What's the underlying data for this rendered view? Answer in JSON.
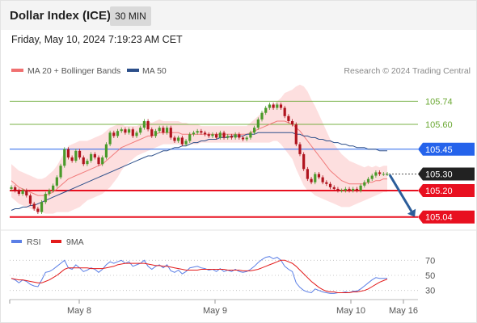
{
  "header": {
    "title": "Dollar Index (ICE)",
    "timeframe": "30 MIN",
    "datetime": "Friday, May 10, 2024 7:19:23 AM CET"
  },
  "legend": {
    "ma20_label": "MA 20 + Bollinger Bands",
    "ma50_label": "MA 50",
    "credit": "Research © 2024 Trading Central",
    "rsi_label": "RSI",
    "rsi_ma_label": "9MA"
  },
  "colors": {
    "ma20": "#f07070",
    "ma50": "#2c4f8a",
    "band_fill": "#fcd4d4",
    "up_candle": "#4a9a2a",
    "down_candle": "#b0141e",
    "green_level": "#6aa832",
    "blue_level": "#2563eb",
    "red_level": "#e81020",
    "arrow": "#2b5d9a",
    "rsi": "#5b7fe6",
    "rsi_ma": "#e31b1b",
    "current_tag": "#222222"
  },
  "chart_data": {
    "type": "candlestick",
    "instrument": "Dollar Index (ICE)",
    "interval": "30 MIN",
    "ylim": [
      104.98,
      105.82
    ],
    "x_ticks": [
      "May 8",
      "May 9",
      "May 10",
      "May 16"
    ],
    "levels": [
      {
        "value": 105.74,
        "label": "105.74",
        "kind": "resistance",
        "style": "green"
      },
      {
        "value": 105.6,
        "label": "105.60",
        "kind": "resistance",
        "style": "green"
      },
      {
        "value": 105.45,
        "label": "105.45",
        "kind": "pivot",
        "style": "blue"
      },
      {
        "value": 105.3,
        "label": "105.30",
        "kind": "current",
        "style": "dark"
      },
      {
        "value": 105.2,
        "label": "105.20",
        "kind": "support",
        "style": "red"
      },
      {
        "value": 105.04,
        "label": "105.04",
        "kind": "support",
        "style": "red"
      }
    ],
    "projection": {
      "from": 105.3,
      "to": 105.04,
      "direction": "down"
    },
    "closes": [
      105.22,
      105.2,
      105.18,
      105.2,
      105.17,
      105.12,
      105.09,
      105.07,
      105.13,
      105.18,
      105.2,
      105.23,
      105.28,
      105.35,
      105.45,
      105.4,
      105.38,
      105.44,
      105.4,
      105.36,
      105.38,
      105.42,
      105.4,
      105.36,
      105.4,
      105.48,
      105.55,
      105.53,
      105.56,
      105.57,
      105.55,
      105.57,
      105.53,
      105.55,
      105.58,
      105.62,
      105.57,
      105.53,
      105.56,
      105.58,
      105.55,
      105.58,
      105.52,
      105.5,
      105.52,
      105.48,
      105.5,
      105.54,
      105.55,
      105.56,
      105.55,
      105.54,
      105.53,
      105.54,
      105.52,
      105.55,
      105.52,
      105.53,
      105.52,
      105.54,
      105.52,
      105.51,
      105.52,
      105.55,
      105.58,
      105.63,
      105.67,
      105.7,
      105.72,
      105.7,
      105.72,
      105.7,
      105.65,
      105.62,
      105.6,
      105.48,
      105.42,
      105.33,
      105.27,
      105.25,
      105.3,
      105.28,
      105.25,
      105.24,
      105.22,
      105.21,
      105.2,
      105.2,
      105.21,
      105.2,
      105.21,
      105.2,
      105.23,
      105.25,
      105.27,
      105.29,
      105.31,
      105.3,
      105.3,
      105.3
    ],
    "ma20": [
      105.26,
      105.24,
      105.22,
      105.21,
      105.2,
      105.19,
      105.18,
      105.17,
      105.17,
      105.17,
      105.18,
      105.19,
      105.21,
      105.23,
      105.25,
      105.27,
      105.28,
      105.29,
      105.3,
      105.31,
      105.32,
      105.33,
      105.34,
      105.35,
      105.36,
      105.38,
      105.4,
      105.42,
      105.44,
      105.46,
      105.47,
      105.48,
      105.49,
      105.5,
      105.51,
      105.52,
      105.53,
      105.53,
      105.54,
      105.55,
      105.55,
      105.55,
      105.55,
      105.55,
      105.55,
      105.54,
      105.54,
      105.54,
      105.54,
      105.54,
      105.54,
      105.54,
      105.54,
      105.54,
      105.54,
      105.54,
      105.54,
      105.54,
      105.54,
      105.54,
      105.54,
      105.54,
      105.54,
      105.55,
      105.56,
      105.57,
      105.58,
      105.59,
      105.6,
      105.61,
      105.62,
      105.62,
      105.62,
      105.61,
      105.6,
      105.58,
      105.56,
      105.53,
      105.5,
      105.47,
      105.44,
      105.41,
      105.38,
      105.35,
      105.32,
      105.3,
      105.28,
      105.26,
      105.25,
      105.24,
      105.24,
      105.24,
      105.24,
      105.24,
      105.25,
      105.25,
      105.26,
      105.26,
      105.27,
      105.27
    ],
    "ma50": [
      105.08,
      105.09,
      105.09,
      105.1,
      105.1,
      105.11,
      105.11,
      105.12,
      105.13,
      105.14,
      105.15,
      105.16,
      105.17,
      105.18,
      105.19,
      105.2,
      105.21,
      105.22,
      105.23,
      105.24,
      105.25,
      105.26,
      105.27,
      105.28,
      105.29,
      105.3,
      105.31,
      105.32,
      105.33,
      105.34,
      105.35,
      105.36,
      105.37,
      105.38,
      105.39,
      105.4,
      105.41,
      105.41,
      105.42,
      105.43,
      105.44,
      105.44,
      105.45,
      105.46,
      105.46,
      105.47,
      105.47,
      105.48,
      105.49,
      105.49,
      105.5,
      105.5,
      105.51,
      105.51,
      105.51,
      105.52,
      105.52,
      105.52,
      105.53,
      105.53,
      105.53,
      105.53,
      105.54,
      105.54,
      105.54,
      105.55,
      105.55,
      105.55,
      105.55,
      105.55,
      105.55,
      105.55,
      105.55,
      105.55,
      105.55,
      105.54,
      105.54,
      105.53,
      105.53,
      105.52,
      105.52,
      105.51,
      105.51,
      105.5,
      105.5,
      105.49,
      105.49,
      105.48,
      105.48,
      105.47,
      105.47,
      105.46,
      105.46,
      105.46,
      105.45,
      105.45,
      105.45,
      105.44,
      105.44,
      105.44
    ],
    "bands": {
      "width": [
        0.1,
        0.1,
        0.1,
        0.1,
        0.1,
        0.1,
        0.1,
        0.1,
        0.1,
        0.11,
        0.12,
        0.13,
        0.14,
        0.16,
        0.18,
        0.2,
        0.2,
        0.2,
        0.2,
        0.19,
        0.18,
        0.18,
        0.18,
        0.18,
        0.18,
        0.18,
        0.18,
        0.17,
        0.16,
        0.14,
        0.12,
        0.11,
        0.1,
        0.09,
        0.09,
        0.09,
        0.09,
        0.08,
        0.08,
        0.08,
        0.07,
        0.07,
        0.07,
        0.07,
        0.07,
        0.07,
        0.07,
        0.06,
        0.06,
        0.06,
        0.05,
        0.05,
        0.05,
        0.05,
        0.05,
        0.05,
        0.05,
        0.05,
        0.05,
        0.05,
        0.05,
        0.05,
        0.05,
        0.06,
        0.07,
        0.08,
        0.09,
        0.1,
        0.11,
        0.11,
        0.12,
        0.14,
        0.17,
        0.19,
        0.21,
        0.25,
        0.28,
        0.3,
        0.3,
        0.28,
        0.27,
        0.25,
        0.23,
        0.21,
        0.19,
        0.18,
        0.17,
        0.16,
        0.15,
        0.14,
        0.13,
        0.12,
        0.11,
        0.1,
        0.1,
        0.09,
        0.09,
        0.08,
        0.08,
        0.08
      ]
    },
    "rsi": {
      "ylim": [
        20,
        80
      ],
      "ticks": [
        70,
        50,
        30
      ],
      "values": [
        46,
        44,
        40,
        44,
        42,
        38,
        36,
        35,
        44,
        54,
        55,
        58,
        62,
        66,
        70,
        60,
        58,
        64,
        60,
        55,
        57,
        60,
        58,
        54,
        58,
        64,
        68,
        66,
        68,
        70,
        66,
        68,
        62,
        64,
        66,
        70,
        62,
        58,
        62,
        64,
        60,
        64,
        56,
        54,
        57,
        52,
        55,
        60,
        61,
        62,
        60,
        59,
        57,
        58,
        55,
        59,
        55,
        57,
        55,
        58,
        55,
        54,
        55,
        58,
        62,
        67,
        71,
        74,
        75,
        72,
        74,
        70,
        62,
        58,
        55,
        40,
        34,
        30,
        28,
        27,
        32,
        30,
        28,
        27,
        26,
        26,
        27,
        27,
        28,
        27,
        29,
        29,
        32,
        36,
        40,
        44,
        47,
        46,
        46,
        46
      ],
      "ma": [
        46,
        45,
        44,
        44,
        43,
        42,
        41,
        40,
        40,
        42,
        44,
        47,
        50,
        54,
        58,
        60,
        60,
        60,
        60,
        60,
        60,
        59,
        59,
        59,
        59,
        60,
        61,
        62,
        64,
        65,
        66,
        66,
        66,
        66,
        66,
        66,
        65,
        64,
        63,
        63,
        62,
        62,
        61,
        60,
        59,
        58,
        57,
        57,
        57,
        57,
        58,
        58,
        58,
        58,
        58,
        58,
        58,
        57,
        57,
        57,
        57,
        56,
        56,
        56,
        57,
        58,
        60,
        62,
        64,
        66,
        68,
        70,
        70,
        68,
        66,
        62,
        57,
        52,
        47,
        42,
        38,
        34,
        31,
        29,
        28,
        28,
        27,
        27,
        27,
        27,
        28,
        28,
        29,
        30,
        32,
        35,
        38,
        41,
        43,
        45
      ]
    }
  }
}
